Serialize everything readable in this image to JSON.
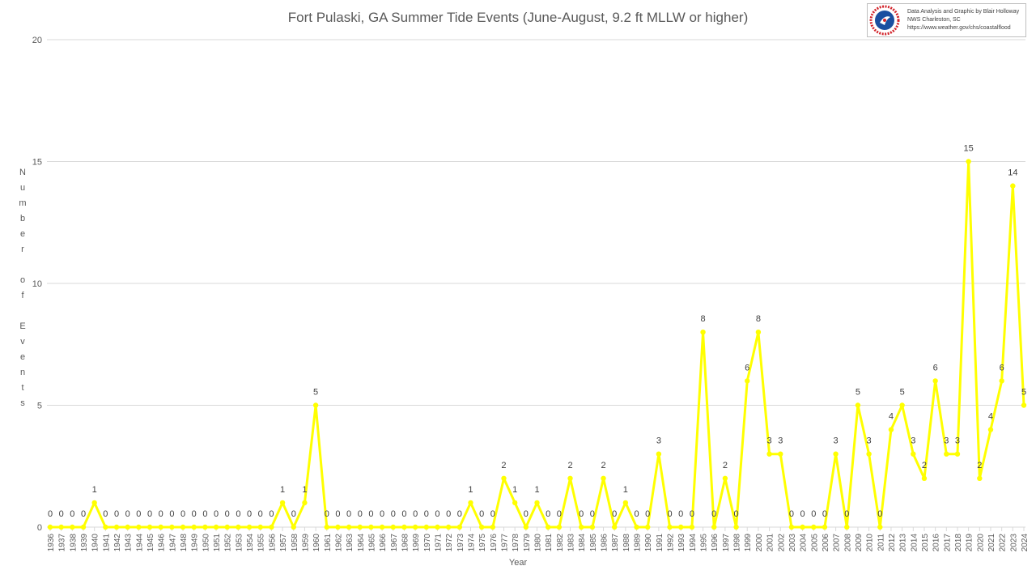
{
  "credit": {
    "line1": "Data Analysis and Graphic by Blair Holloway",
    "line2": "NWS Charleston, SC",
    "line3": "https://www.weather.gov/chs/coastalflood"
  },
  "colors": {
    "series": "#ffff00",
    "gridline": "#d9d9d9",
    "axis_text": "#595959",
    "data_label": "#404040",
    "logo_blue": "#1a4fa0",
    "logo_red": "#d2232a"
  },
  "chart_data": {
    "type": "line",
    "title": "Fort Pulaski, GA Summer Tide Events (June-August, 9.2 ft MLLW or higher)",
    "xlabel": "Year",
    "ylabel": "Number of Events",
    "ylim": [
      0,
      20
    ],
    "yticks": [
      0,
      5,
      10,
      15,
      20
    ],
    "grid": true,
    "legend": "none",
    "data_labels": true,
    "markers": true,
    "series": [
      {
        "color": "#ffff00",
        "x": [
          1936,
          1937,
          1938,
          1939,
          1940,
          1941,
          1942,
          1943,
          1944,
          1945,
          1946,
          1947,
          1948,
          1949,
          1950,
          1951,
          1952,
          1953,
          1954,
          1955,
          1956,
          1957,
          1958,
          1959,
          1960,
          1961,
          1962,
          1963,
          1964,
          1965,
          1966,
          1967,
          1968,
          1969,
          1970,
          1971,
          1972,
          1973,
          1974,
          1975,
          1976,
          1977,
          1978,
          1979,
          1980,
          1981,
          1982,
          1983,
          1984,
          1985,
          1986,
          1987,
          1988,
          1989,
          1990,
          1991,
          1992,
          1993,
          1994,
          1995,
          1996,
          1997,
          1998,
          1999,
          2000,
          2001,
          2002,
          2003,
          2004,
          2005,
          2006,
          2007,
          2008,
          2009,
          2010,
          2011,
          2012,
          2013,
          2014,
          2015,
          2016,
          2017,
          2018,
          2019,
          2020,
          2021,
          2022,
          2023,
          2024
        ],
        "values": [
          0,
          0,
          0,
          0,
          1,
          0,
          0,
          0,
          0,
          0,
          0,
          0,
          0,
          0,
          0,
          0,
          0,
          0,
          0,
          0,
          0,
          1,
          0,
          1,
          5,
          0,
          0,
          0,
          0,
          0,
          0,
          0,
          0,
          0,
          0,
          0,
          0,
          0,
          1,
          0,
          0,
          2,
          1,
          0,
          1,
          0,
          0,
          2,
          0,
          0,
          2,
          0,
          1,
          0,
          0,
          3,
          0,
          0,
          0,
          8,
          0,
          2,
          0,
          6,
          8,
          3,
          3,
          0,
          0,
          0,
          0,
          3,
          0,
          5,
          3,
          0,
          4,
          5,
          3,
          2,
          6,
          3,
          3,
          15,
          2,
          4,
          6,
          14,
          5
        ]
      }
    ]
  }
}
